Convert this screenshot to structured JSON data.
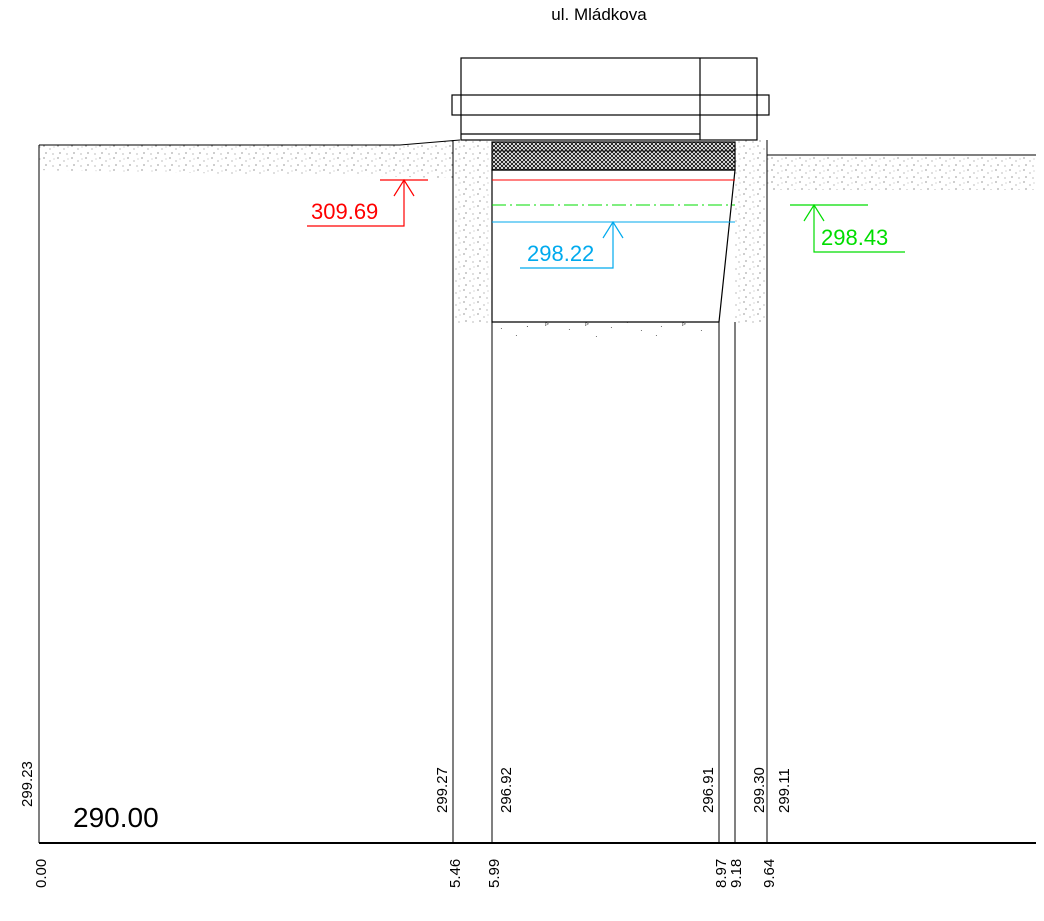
{
  "title": "ul. Mládkova",
  "datum_label": "290.00",
  "levels": {
    "red": {
      "value": "309.69",
      "color": "#ff0000"
    },
    "blue": {
      "value": "298.22",
      "color": "#00aaee"
    },
    "green": {
      "value": "298.43",
      "color": "#00dd00"
    }
  },
  "stations": [
    {
      "distance": "0.00",
      "elevation": "299.23"
    },
    {
      "distance": "5.46",
      "elevation": "299.27"
    },
    {
      "distance": "5.99",
      "elevation": "296.92"
    },
    {
      "distance": "8.97",
      "elevation": "296.91"
    },
    {
      "distance": "9.18",
      "elevation": "299.30"
    },
    {
      "distance": "9.64",
      "elevation": "299.11"
    }
  ]
}
